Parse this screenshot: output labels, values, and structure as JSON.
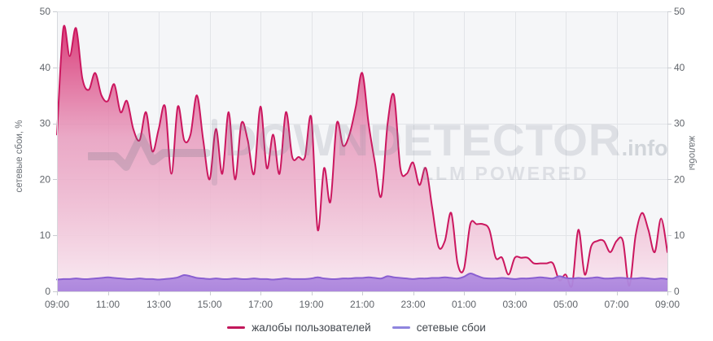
{
  "chart": {
    "left_axis_title": "сетевые сбои, %",
    "right_axis_title": "жалобы",
    "watermark": {
      "brand": "DOWNDETECTOR",
      "tld": ".info",
      "tagline": "LLM POWERED"
    },
    "legend": [
      {
        "label": "жалобы пользователей",
        "color": "#c2175b"
      },
      {
        "label": "сетевые сбои",
        "color": "#8f85de"
      }
    ]
  },
  "chart_data": {
    "type": "area",
    "title": "",
    "xlabel": "",
    "ylabel_left": "сетевые сбои, %",
    "ylabel_right": "жалобы",
    "ylim": [
      0,
      50
    ],
    "y_ticks": [
      0,
      10,
      20,
      30,
      40,
      50
    ],
    "x_tick_labels": [
      "09:00",
      "11:00",
      "13:00",
      "15:00",
      "17:00",
      "19:00",
      "21:00",
      "23:00",
      "01:00",
      "03:00",
      "05:00",
      "07:00",
      "09:00"
    ],
    "x_span_hours": 24,
    "points_interval_minutes": 15,
    "grid": true,
    "legend_position": "bottom",
    "series": [
      {
        "name": "жалобы пользователей",
        "line_color": "#cb175f",
        "fill_top": "#d51d63",
        "fill_mid": "#e793b8",
        "fill_bottom": "#f9ecf3",
        "values": [
          28,
          47,
          42,
          47,
          38,
          36,
          39,
          35,
          34,
          37,
          32,
          34,
          29,
          27,
          32,
          25,
          29,
          33,
          21,
          33,
          27,
          28,
          35,
          27,
          20,
          29,
          21,
          32,
          20,
          30,
          27,
          21,
          33,
          22,
          28,
          21,
          32,
          24,
          24,
          24,
          31,
          11,
          22,
          16,
          30,
          26,
          28,
          33,
          39,
          30,
          23,
          17,
          30,
          35,
          22,
          21,
          23,
          19,
          22,
          15,
          8,
          9,
          14,
          5,
          4,
          12,
          12,
          12,
          11,
          6,
          6,
          3,
          6,
          6,
          6,
          5,
          5,
          5,
          5,
          2,
          3,
          1,
          11,
          3,
          8,
          9,
          9,
          7,
          9,
          9,
          1,
          10,
          14,
          11,
          7,
          13,
          7
        ]
      },
      {
        "name": "сетевые сбои",
        "line_color": "#8a5fd1",
        "fill": "#a982dc",
        "values": [
          2.1,
          2.2,
          2.2,
          2.3,
          2.2,
          2.2,
          2.3,
          2.4,
          2.5,
          2.4,
          2.3,
          2.2,
          2.2,
          2.3,
          2.2,
          2.2,
          2.1,
          2.2,
          2.3,
          2.5,
          2.9,
          2.7,
          2.4,
          2.3,
          2.2,
          2.3,
          2.2,
          2.2,
          2.3,
          2.2,
          2.2,
          2.3,
          2.2,
          2.2,
          2.1,
          2.2,
          2.3,
          2.2,
          2.2,
          2.2,
          2.3,
          2.5,
          2.3,
          2.2,
          2.2,
          2.3,
          2.3,
          2.4,
          2.4,
          2.5,
          2.4,
          2.3,
          2.7,
          2.5,
          2.4,
          2.3,
          2.2,
          2.3,
          2.3,
          2.4,
          2.4,
          2.5,
          2.4,
          2.3,
          2.6,
          3.2,
          2.8,
          2.4,
          2.3,
          2.3,
          2.4,
          2.3,
          2.2,
          2.3,
          2.3,
          2.4,
          2.5,
          2.4,
          2.3,
          2.7,
          2.4,
          2.3,
          2.4,
          2.3,
          2.4,
          2.5,
          2.3,
          2.3,
          2.4,
          2.4,
          2.3,
          2.3,
          2.4,
          2.3,
          2.2,
          2.3,
          2.2
        ]
      }
    ],
    "style": {
      "plot_bg": "#f5f6f8",
      "grid_color": "#e2e4e8",
      "axis_line_color": "#d7d9dd",
      "tick_text_color": "#60646a",
      "tick_font_size": 12
    }
  }
}
